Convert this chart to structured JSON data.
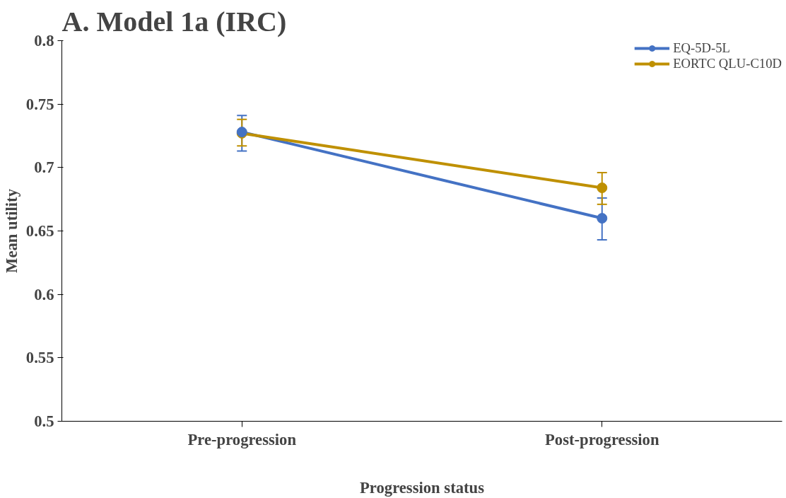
{
  "chart_data": {
    "type": "line",
    "title": "A. Model 1a (IRC)",
    "xlabel": "Progression status",
    "ylabel": "Mean utility",
    "categories": [
      "Pre-progression",
      "Post-progression"
    ],
    "series": [
      {
        "name": "EQ-5D-5L",
        "color": "#4472c4",
        "values": [
          0.728,
          0.66
        ],
        "errors": [
          [
            0.713,
            0.741
          ],
          [
            0.643,
            0.676
          ]
        ]
      },
      {
        "name": "EORTC QLU-C10D",
        "color": "#bf9000",
        "values": [
          0.727,
          0.684
        ],
        "errors": [
          [
            0.717,
            0.738
          ],
          [
            0.671,
            0.696
          ]
        ]
      }
    ],
    "ylim": [
      0.5,
      0.8
    ],
    "yticks": [
      0.5,
      0.55,
      0.6,
      0.65,
      0.7,
      0.75,
      0.8
    ],
    "grid": false,
    "legend": "top right",
    "marker": "circle",
    "line_style": "solid"
  }
}
